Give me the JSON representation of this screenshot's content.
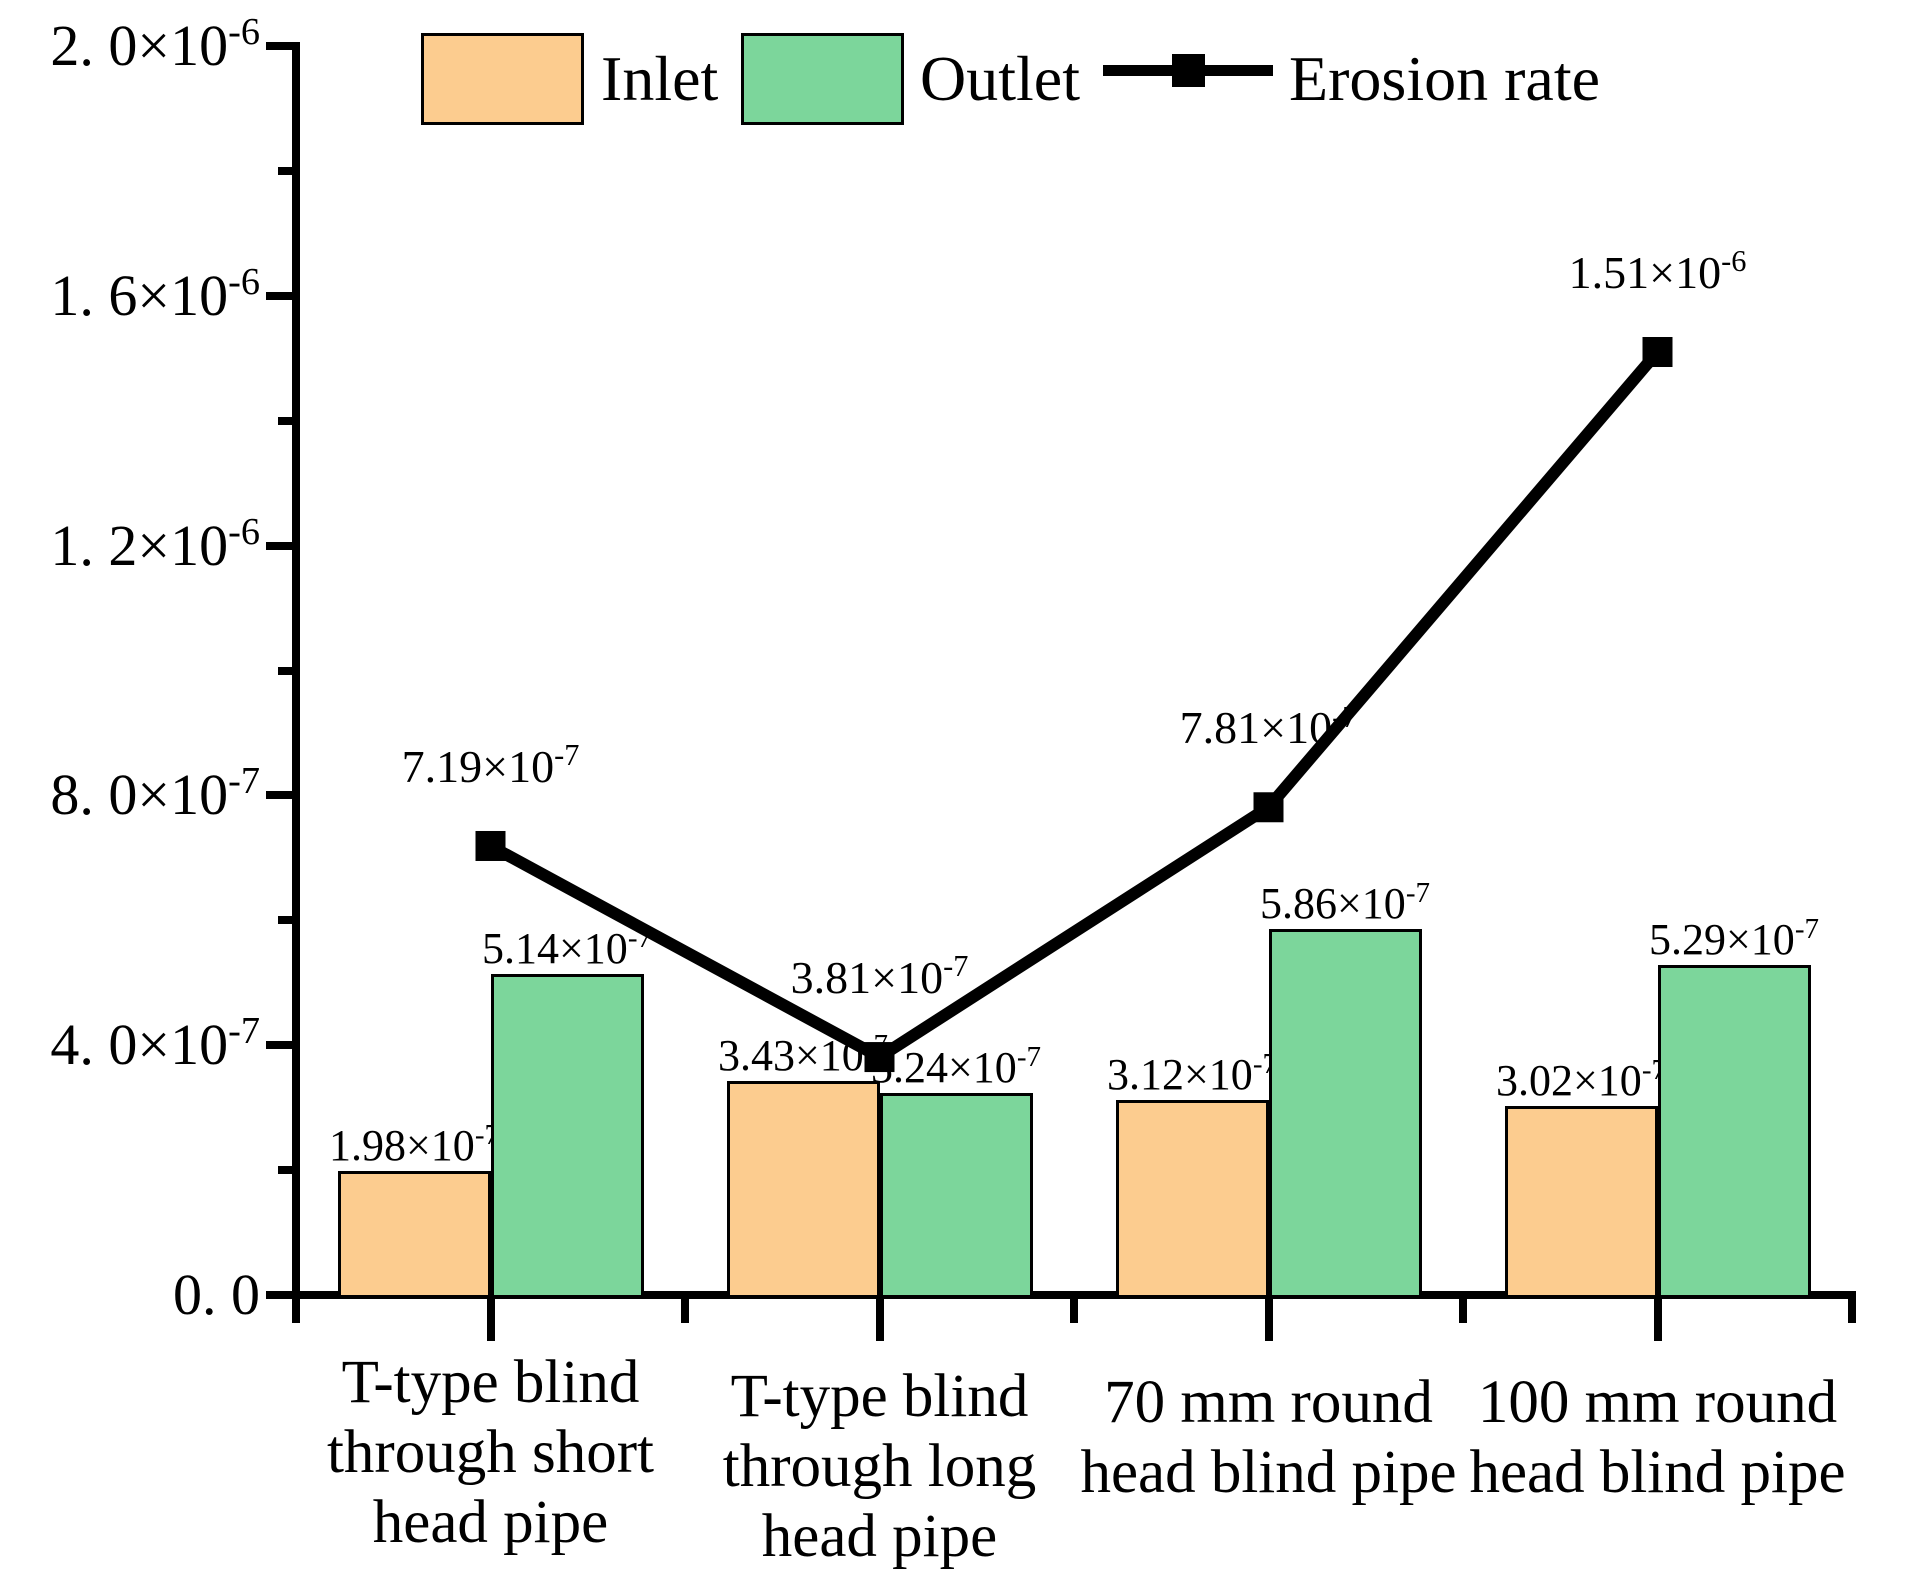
{
  "chart_data": {
    "type": "bar",
    "subtype": "bar+line-combo",
    "title": "",
    "xlabel": "",
    "ylabel": "",
    "ylim": [
      0,
      2e-06
    ],
    "grid": false,
    "legend_position": "top",
    "categories": [
      {
        "lines": [
          "T-type blind",
          "through short",
          "head pipe"
        ]
      },
      {
        "lines": [
          "T-type blind",
          "through long",
          "head pipe"
        ]
      },
      {
        "lines": [
          "70 mm round",
          "head blind pipe"
        ]
      },
      {
        "lines": [
          "100 mm round",
          "head blind pipe"
        ]
      }
    ],
    "series": [
      {
        "name": "Inlet",
        "type": "bar",
        "color": "#FCCC8F",
        "values": [
          1.98e-07,
          3.43e-07,
          3.12e-07,
          3.02e-07
        ],
        "labels": [
          {
            "m": "1.98×10",
            "e": "-7"
          },
          {
            "m": "3.43×10",
            "e": "-7"
          },
          {
            "m": "3.12×10",
            "e": "-7"
          },
          {
            "m": "3.02×10",
            "e": "-7"
          }
        ]
      },
      {
        "name": "Outlet",
        "type": "bar",
        "color": "#7CD69B",
        "values": [
          5.14e-07,
          3.24e-07,
          5.86e-07,
          5.29e-07
        ],
        "labels": [
          {
            "m": "5.14×10",
            "e": "-7"
          },
          {
            "m": "3.24×10",
            "e": "-7"
          },
          {
            "m": "5.86×10",
            "e": "-7"
          },
          {
            "m": "5.29×10",
            "e": "-7"
          }
        ]
      },
      {
        "name": "Erosion rate",
        "type": "line",
        "color": "#000000",
        "values": [
          7.19e-07,
          3.81e-07,
          7.81e-07,
          1.51e-06
        ],
        "labels": [
          {
            "m": "7.19×10",
            "e": "-7"
          },
          {
            "m": "3.81×10",
            "e": "-7"
          },
          {
            "m": "7.81×10",
            "e": "-7"
          },
          {
            "m": "1.51×10",
            "e": "-6"
          }
        ]
      }
    ],
    "yticks": [
      {
        "v": 0,
        "m": "0. 0",
        "e": ""
      },
      {
        "v": 4e-07,
        "m": "4. 0×10",
        "e": "-7"
      },
      {
        "v": 8e-07,
        "m": "8. 0×10",
        "e": "-7"
      },
      {
        "v": 1.2e-06,
        "m": "1. 2×10",
        "e": "-6"
      },
      {
        "v": 1.6e-06,
        "m": "1. 6×10",
        "e": "-6"
      },
      {
        "v": 2e-06,
        "m": "2. 0×10",
        "e": "-6"
      }
    ],
    "minor_yticks": [
      2e-07,
      6e-07,
      1e-06,
      1.4e-06,
      1.8e-06
    ]
  }
}
